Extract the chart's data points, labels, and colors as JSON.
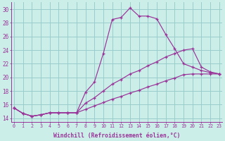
{
  "xlabel": "Windchill (Refroidissement éolien,°C)",
  "xlim": [
    -0.3,
    23.3
  ],
  "ylim": [
    13.5,
    31.0
  ],
  "xticks": [
    0,
    1,
    2,
    3,
    4,
    5,
    6,
    7,
    8,
    9,
    10,
    11,
    12,
    13,
    14,
    15,
    16,
    17,
    18,
    19,
    20,
    21,
    22,
    23
  ],
  "yticks": [
    14,
    16,
    18,
    20,
    22,
    24,
    26,
    28,
    30
  ],
  "bg_color": "#cceee8",
  "line_color": "#993399",
  "grid_color": "#99cccc",
  "line1_x": [
    0,
    1,
    2,
    3,
    4,
    5,
    6,
    7,
    8,
    9,
    10,
    11,
    12,
    13,
    14,
    15,
    16,
    17,
    18,
    19,
    20,
    21,
    22,
    23
  ],
  "line1_y": [
    15.5,
    14.7,
    14.3,
    14.5,
    14.8,
    14.8,
    14.8,
    14.8,
    17.8,
    19.3,
    23.5,
    28.5,
    28.8,
    30.2,
    29.0,
    29.0,
    28.6,
    26.3,
    24.2,
    22.0,
    21.5,
    21.0,
    20.7,
    20.5
  ],
  "line2_x": [
    0,
    1,
    2,
    3,
    4,
    5,
    6,
    7,
    8,
    9,
    10,
    11,
    12,
    13,
    14,
    15,
    16,
    17,
    18,
    19,
    20,
    21,
    22,
    23
  ],
  "line2_y": [
    15.5,
    14.7,
    14.3,
    14.5,
    14.8,
    14.8,
    14.8,
    14.8,
    16.2,
    17.0,
    18.0,
    19.0,
    19.7,
    20.5,
    21.0,
    21.7,
    22.3,
    23.0,
    23.5,
    24.0,
    24.2,
    21.5,
    20.8,
    20.5
  ],
  "line3_x": [
    0,
    1,
    2,
    3,
    4,
    5,
    6,
    7,
    8,
    9,
    10,
    11,
    12,
    13,
    14,
    15,
    16,
    17,
    18,
    19,
    20,
    21,
    22,
    23
  ],
  "line3_y": [
    15.5,
    14.7,
    14.3,
    14.5,
    14.8,
    14.8,
    14.8,
    14.8,
    15.3,
    15.8,
    16.3,
    16.8,
    17.2,
    17.7,
    18.1,
    18.6,
    19.0,
    19.5,
    19.9,
    20.4,
    20.5,
    20.5,
    20.5,
    20.5
  ]
}
